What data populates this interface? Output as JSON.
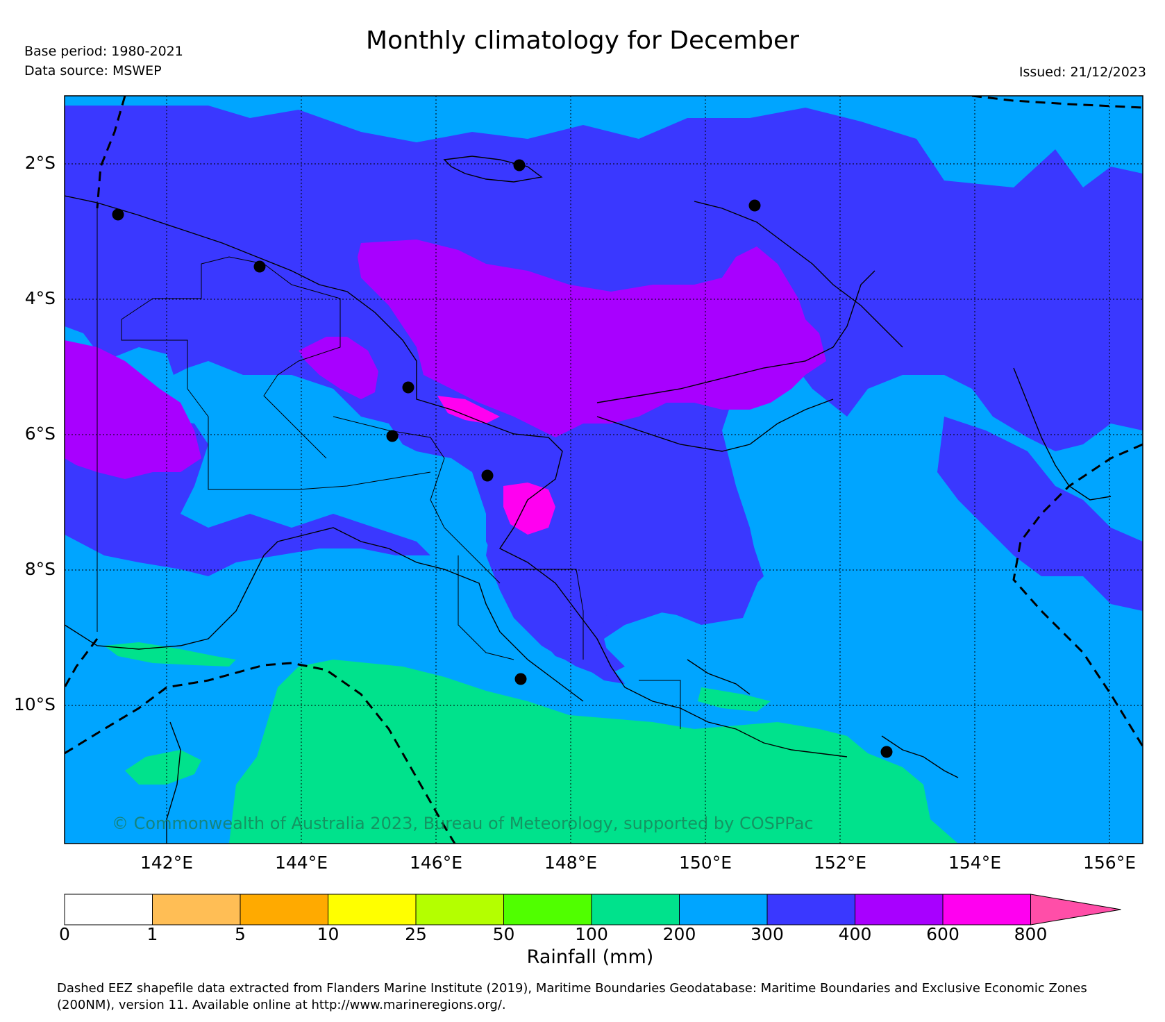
{
  "header": {
    "title": "Monthly climatology for December",
    "base_period": "Base period: 1980-2021",
    "data_source": "Data source: MSWEP",
    "issued": "Issued: 21/12/2023"
  },
  "map": {
    "lat_labels": [
      "2°S",
      "4°S",
      "6°S",
      "8°S",
      "10°S"
    ],
    "lon_labels": [
      "142°E",
      "144°E",
      "146°E",
      "148°E",
      "150°E",
      "152°E",
      "154°E",
      "156°E"
    ],
    "copyright": "© Commonwealth of Australia 2023, Bureau of Meteorology, supported by COSPPac",
    "colors": {
      "100-200": "#00e28c",
      "200-300": "#00a5ff",
      "300-400": "#3a38ff",
      "400-600": "#a800ff",
      "600-800": "#ff00f0"
    }
  },
  "colorbar": {
    "label": "Rainfall (mm)",
    "ticks": [
      "0",
      "1",
      "5",
      "10",
      "25",
      "50",
      "100",
      "200",
      "300",
      "400",
      "600",
      "800"
    ],
    "colors": [
      "#ffffff",
      "#ffbe55",
      "#ffaa00",
      "#ffff00",
      "#b4ff00",
      "#50ff00",
      "#00e28c",
      "#00a5ff",
      "#3a38ff",
      "#a800ff",
      "#ff00f0"
    ],
    "extend_color": "#ff4ea8"
  },
  "footer": {
    "line1": "Dashed EEZ shapefile data extracted from Flanders Marine Institute (2019), Maritime Boundaries Geodatabase: Maritime Boundaries and Exclusive Economic Zones",
    "line2": "(200NM), version 11. Available online at http://www.marineregions.org/."
  }
}
